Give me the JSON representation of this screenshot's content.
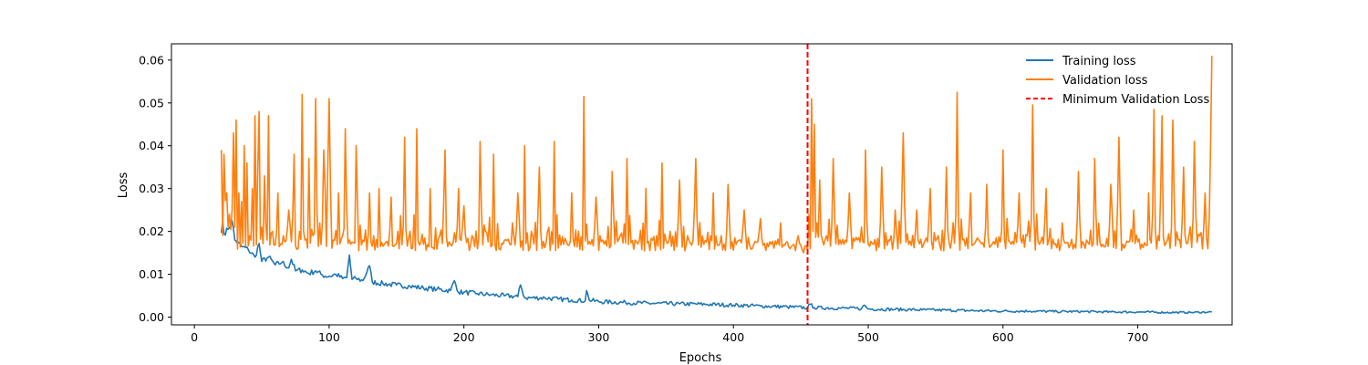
{
  "chart_data": {
    "type": "line",
    "title": "",
    "xlabel": "Epochs",
    "ylabel": "Loss",
    "xlim": [
      -17,
      770
    ],
    "ylim": [
      -0.0018,
      0.0638
    ],
    "xticks": [
      0,
      100,
      200,
      300,
      400,
      500,
      600,
      700
    ],
    "yticks": [
      0.0,
      0.01,
      0.02,
      0.03,
      0.04,
      0.05,
      0.06
    ],
    "xtick_labels": [
      "0",
      "100",
      "200",
      "300",
      "400",
      "500",
      "600",
      "700"
    ],
    "ytick_labels": [
      "0.00",
      "0.01",
      "0.02",
      "0.03",
      "0.04",
      "0.05",
      "0.06"
    ],
    "grid": false,
    "legend_position": "top-right",
    "x_start": 20,
    "x_end": 755,
    "series": [
      {
        "name": "Training loss",
        "color": "#1f77b4",
        "points": [
          [
            20,
            0.0197
          ],
          [
            21,
            0.0222
          ],
          [
            22,
            0.0195
          ],
          [
            25,
            0.0205
          ],
          [
            28,
            0.0225
          ],
          [
            30,
            0.018
          ],
          [
            35,
            0.0165
          ],
          [
            40,
            0.0158
          ],
          [
            45,
            0.014
          ],
          [
            48,
            0.0172
          ],
          [
            50,
            0.013
          ],
          [
            55,
            0.014
          ],
          [
            60,
            0.0122
          ],
          [
            65,
            0.0128
          ],
          [
            70,
            0.0115
          ],
          [
            72,
            0.0135
          ],
          [
            75,
            0.0108
          ],
          [
            80,
            0.011
          ],
          [
            85,
            0.0102
          ],
          [
            90,
            0.0108
          ],
          [
            95,
            0.0098
          ],
          [
            100,
            0.0095
          ],
          [
            105,
            0.01
          ],
          [
            110,
            0.009
          ],
          [
            113,
            0.0092
          ],
          [
            115,
            0.0145
          ],
          [
            117,
            0.0088
          ],
          [
            120,
            0.009
          ],
          [
            125,
            0.0085
          ],
          [
            130,
            0.012
          ],
          [
            132,
            0.0082
          ],
          [
            140,
            0.0078
          ],
          [
            150,
            0.0075
          ],
          [
            160,
            0.0072
          ],
          [
            170,
            0.0068
          ],
          [
            180,
            0.0065
          ],
          [
            190,
            0.0062
          ],
          [
            193,
            0.0085
          ],
          [
            196,
            0.0058
          ],
          [
            200,
            0.0058
          ],
          [
            210,
            0.0055
          ],
          [
            220,
            0.0052
          ],
          [
            230,
            0.005
          ],
          [
            240,
            0.0048
          ],
          [
            242,
            0.0075
          ],
          [
            245,
            0.0045
          ],
          [
            260,
            0.0045
          ],
          [
            270,
            0.0042
          ],
          [
            280,
            0.004
          ],
          [
            290,
            0.0038
          ],
          [
            291,
            0.0062
          ],
          [
            293,
            0.004
          ],
          [
            300,
            0.0036
          ],
          [
            320,
            0.0034
          ],
          [
            340,
            0.0032
          ],
          [
            360,
            0.0031
          ],
          [
            380,
            0.003
          ],
          [
            400,
            0.0028
          ],
          [
            420,
            0.0026
          ],
          [
            440,
            0.0024
          ],
          [
            455,
            0.0022
          ],
          [
            457,
            0.003
          ],
          [
            460,
            0.0022
          ],
          [
            480,
            0.0021
          ],
          [
            495,
            0.002
          ],
          [
            497,
            0.0028
          ],
          [
            500,
            0.0019
          ],
          [
            520,
            0.0018
          ],
          [
            540,
            0.0017
          ],
          [
            560,
            0.0016
          ],
          [
            580,
            0.0015
          ],
          [
            600,
            0.0014
          ],
          [
            620,
            0.0014
          ],
          [
            640,
            0.0013
          ],
          [
            660,
            0.0013
          ],
          [
            680,
            0.0012
          ],
          [
            700,
            0.0012
          ],
          [
            720,
            0.0011
          ],
          [
            740,
            0.0011
          ],
          [
            755,
            0.0012
          ]
        ],
        "noise_amplitude": [
          0.0014,
          0.0004
        ]
      },
      {
        "name": "Validation loss",
        "color": "#ff7f0e",
        "baseline": 0.0155,
        "points": [
          [
            20,
            0.039
          ],
          [
            22,
            0.038
          ],
          [
            24,
            0.029
          ],
          [
            26,
            0.024
          ],
          [
            28,
            0.025
          ],
          [
            29,
            0.043
          ],
          [
            30,
            0.021
          ],
          [
            31,
            0.046
          ],
          [
            33,
            0.029
          ],
          [
            35,
            0.027
          ],
          [
            37,
            0.04
          ],
          [
            39,
            0.036
          ],
          [
            41,
            0.019
          ],
          [
            43,
            0.03
          ],
          [
            45,
            0.047
          ],
          [
            47,
            0.034
          ],
          [
            48,
            0.048
          ],
          [
            50,
            0.021
          ],
          [
            52,
            0.033
          ],
          [
            55,
            0.047
          ],
          [
            58,
            0.02
          ],
          [
            62,
            0.029
          ],
          [
            66,
            0.019
          ],
          [
            70,
            0.025
          ],
          [
            74,
            0.038
          ],
          [
            78,
            0.02
          ],
          [
            80,
            0.052
          ],
          [
            82,
            0.018
          ],
          [
            85,
            0.037
          ],
          [
            88,
            0.019
          ],
          [
            90,
            0.051
          ],
          [
            93,
            0.022
          ],
          [
            96,
            0.039
          ],
          [
            100,
            0.051
          ],
          [
            103,
            0.018
          ],
          [
            107,
            0.029
          ],
          [
            110,
            0.019
          ],
          [
            112,
            0.044
          ],
          [
            115,
            0.018
          ],
          [
            120,
            0.04
          ],
          [
            125,
            0.018
          ],
          [
            130,
            0.029
          ],
          [
            133,
            0.019
          ],
          [
            137,
            0.03
          ],
          [
            141,
            0.017
          ],
          [
            146,
            0.028
          ],
          [
            151,
            0.02
          ],
          [
            156,
            0.042
          ],
          [
            160,
            0.02
          ],
          [
            165,
            0.044
          ],
          [
            170,
            0.017
          ],
          [
            175,
            0.03
          ],
          [
            182,
            0.019
          ],
          [
            186,
            0.039
          ],
          [
            190,
            0.017
          ],
          [
            196,
            0.03
          ],
          [
            200,
            0.026
          ],
          [
            206,
            0.019
          ],
          [
            212,
            0.041
          ],
          [
            216,
            0.02
          ],
          [
            222,
            0.038
          ],
          [
            229,
            0.017
          ],
          [
            236,
            0.022
          ],
          [
            240,
            0.029
          ],
          [
            245,
            0.04
          ],
          [
            250,
            0.02
          ],
          [
            256,
            0.035
          ],
          [
            262,
            0.02
          ],
          [
            267,
            0.041
          ],
          [
            274,
            0.017
          ],
          [
            280,
            0.029
          ],
          [
            285,
            0.02
          ],
          [
            289,
            0.0515
          ],
          [
            292,
            0.017
          ],
          [
            298,
            0.028
          ],
          [
            303,
            0.018
          ],
          [
            310,
            0.034
          ],
          [
            316,
            0.019
          ],
          [
            321,
            0.037
          ],
          [
            327,
            0.018
          ],
          [
            335,
            0.03
          ],
          [
            343,
            0.019
          ],
          [
            347,
            0.036
          ],
          [
            353,
            0.02
          ],
          [
            360,
            0.032
          ],
          [
            366,
            0.019
          ],
          [
            372,
            0.037
          ],
          [
            378,
            0.017
          ],
          [
            385,
            0.029
          ],
          [
            391,
            0.019
          ],
          [
            396,
            0.031
          ],
          [
            402,
            0.017
          ],
          [
            408,
            0.025
          ],
          [
            414,
            0.016
          ],
          [
            420,
            0.023
          ],
          [
            428,
            0.017
          ],
          [
            435,
            0.022
          ],
          [
            442,
            0.016
          ],
          [
            448,
            0.019
          ],
          [
            452,
            0.015
          ],
          [
            455,
            0.0155
          ],
          [
            456,
            0.024
          ],
          [
            457,
            0.016
          ],
          [
            458,
            0.051
          ],
          [
            459,
            0.02
          ],
          [
            460,
            0.045
          ],
          [
            462,
            0.022
          ],
          [
            464,
            0.032
          ],
          [
            468,
            0.018
          ],
          [
            474,
            0.037
          ],
          [
            480,
            0.017
          ],
          [
            486,
            0.029
          ],
          [
            492,
            0.018
          ],
          [
            498,
            0.039
          ],
          [
            504,
            0.017
          ],
          [
            510,
            0.035
          ],
          [
            515,
            0.018
          ],
          [
            520,
            0.025
          ],
          [
            526,
            0.043
          ],
          [
            530,
            0.017
          ],
          [
            536,
            0.025
          ],
          [
            541,
            0.017
          ],
          [
            546,
            0.03
          ],
          [
            552,
            0.019
          ],
          [
            558,
            0.035
          ],
          [
            562,
            0.018
          ],
          [
            566,
            0.0525
          ],
          [
            570,
            0.018
          ],
          [
            576,
            0.029
          ],
          [
            582,
            0.018
          ],
          [
            588,
            0.031
          ],
          [
            594,
            0.017
          ],
          [
            600,
            0.039
          ],
          [
            606,
            0.017
          ],
          [
            612,
            0.029
          ],
          [
            618,
            0.019
          ],
          [
            622,
            0.0495
          ],
          [
            627,
            0.017
          ],
          [
            632,
            0.03
          ],
          [
            638,
            0.017
          ],
          [
            644,
            0.022
          ],
          [
            650,
            0.017
          ],
          [
            656,
            0.034
          ],
          [
            662,
            0.018
          ],
          [
            668,
            0.037
          ],
          [
            674,
            0.017
          ],
          [
            680,
            0.031
          ],
          [
            686,
            0.042
          ],
          [
            691,
            0.017
          ],
          [
            697,
            0.025
          ],
          [
            703,
            0.017
          ],
          [
            708,
            0.029
          ],
          [
            712,
            0.0485
          ],
          [
            715,
            0.019
          ],
          [
            718,
            0.047
          ],
          [
            722,
            0.018
          ],
          [
            726,
            0.046
          ],
          [
            730,
            0.018
          ],
          [
            734,
            0.035
          ],
          [
            738,
            0.019
          ],
          [
            742,
            0.041
          ],
          [
            746,
            0.019
          ],
          [
            750,
            0.029
          ],
          [
            752,
            0.016
          ],
          [
            754,
            0.04
          ],
          [
            755,
            0.061
          ]
        ]
      },
      {
        "name": "Minimum Validation Loss",
        "color": "#ff0000",
        "type": "vline",
        "x": 455,
        "dashed": true
      }
    ]
  }
}
